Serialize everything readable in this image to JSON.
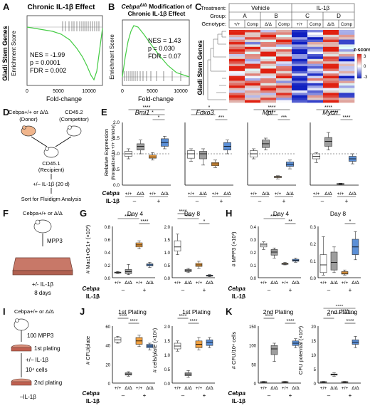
{
  "panels": {
    "A": {
      "label": "A",
      "title": "Chronic IL-1β Effect",
      "ylabel": "Enrichment Score",
      "side_label": "Gladi Stem Genes",
      "xlabel": "Fold-change",
      "stats": [
        "NES = -1.99",
        "p = 0.0001",
        "FDR = 0.002"
      ],
      "xticks": [
        "0",
        "5000",
        "10000"
      ],
      "yticks": [
        "0.0",
        "-0.2",
        "-0.4",
        "-0.6"
      ]
    },
    "B": {
      "label": "B",
      "title_prefix": "Cebpa",
      "title_sup": "Δ/Δ",
      "title_suffix": " Modification of",
      "title_line2": "Chronic IL-1β Effect",
      "ylabel": "Enrichment Score",
      "xlabel": "Fold-change",
      "stats": [
        "NES = 1.43",
        "p = 0.030",
        "FDR = 0.07"
      ],
      "xticks": [
        "0",
        "5000",
        "10000"
      ],
      "yticks": [
        "0.6",
        "0.4",
        "0.2",
        "0.0"
      ]
    },
    "C": {
      "label": "C",
      "row_treatment": "Treatment:",
      "row_group": "Group:",
      "row_genotype": "Genotype:",
      "vehicle": "Vehicle",
      "il1b": "IL-1β",
      "groups": [
        "A",
        "B",
        "C",
        "D"
      ],
      "genotypes": [
        "+/+",
        "Comp",
        "Δ/Δ",
        "Comp",
        "+/+",
        "Comp",
        "Δ/Δ",
        "Comp"
      ],
      "side_label": "Gladi Stem Genes",
      "legend_title": "z-score",
      "legend_ticks": [
        "3",
        "0",
        "-3"
      ]
    },
    "D": {
      "label": "D",
      "donor_line1": "Cebpa+/+ or Δ/Δ",
      "donor": "(Donor)",
      "competitor_line1": "CD45.2",
      "competitor": "(Competitor)",
      "recipient_line1": "CD45.1",
      "recipient": "(Recipient)",
      "treatment": "+/– IL-1β (20 d)",
      "sort": "Sort for Fluidigm Analysis"
    },
    "E": {
      "label": "E",
      "ylabel_line1": "Relative Expression",
      "ylabel_line2": "(Normalized to +/+ Vehicle)",
      "genes": [
        "Bmi1",
        "Foxo3",
        "Mpl",
        "Mycn"
      ],
      "yticks": [
        "2.0",
        "1.5",
        "1.0",
        "0.5",
        "0.0"
      ],
      "x_row_cebpa": "Cebpa",
      "x_row_il1b": "IL-1β",
      "geno_labels": "+/+Δ/Δ+/+Δ/Δ",
      "minus": "–",
      "plus": "+"
    },
    "F": {
      "label": "F",
      "mouse_label": "Cebpa+/+ or Δ/Δ",
      "cells": "MPP3",
      "treatment": "+/- IL-1β",
      "days": "8 days"
    },
    "G": {
      "label": "G",
      "ylabel": "# Mac1+Gr1+ (×10³)",
      "subtitles": [
        "Day 4",
        "Day 8"
      ],
      "yticks_left": [
        "0.8",
        "0.6",
        "0.4",
        "0.2",
        "0.0"
      ],
      "yticks_right": [
        "2.0",
        "1.5",
        "1.0",
        "0.5",
        "0.0"
      ]
    },
    "H": {
      "label": "H",
      "ylabel": "# MPP3 (×10³)",
      "subtitles": [
        "Day 4",
        "Day 8"
      ],
      "yticks_left": [
        "0.4",
        "0.3",
        "0.2",
        "0.1",
        "0.0"
      ],
      "yticks_right": [
        "0.3",
        "0.2",
        "0.1",
        "0.0"
      ]
    },
    "I": {
      "label": "I",
      "mouse_label": "Cebpa+/+ or Δ/Δ",
      "step1": "100 MPP3",
      "step2": "1st plating",
      "step3": "+/– IL-1β",
      "step4": "10⁴ cells",
      "step5": "2nd plating",
      "step6": "–IL-1β"
    },
    "J": {
      "label": "J",
      "subtitles": [
        "1st Plating",
        "1st Plating"
      ],
      "ylabels": [
        "# CFU/plate",
        "# cells/plate (×10⁶)"
      ],
      "yticks_left": [
        "60",
        "40",
        "20",
        "0"
      ],
      "yticks_right": [
        "2.0",
        "1.5",
        "1.0",
        "0.5",
        "0.0"
      ]
    },
    "K": {
      "label": "K",
      "subtitles": [
        "2nd Plating",
        "2nd Plating"
      ],
      "ylabels": [
        "# CFU/10⁴ cells",
        "CFU potential (×10³)"
      ],
      "yticks_left": [
        "150",
        "100",
        "50",
        "0"
      ],
      "yticks_right": [
        "20",
        "15",
        "10",
        "5",
        "0"
      ]
    }
  },
  "sig": {
    "s4": "****",
    "s3": "***",
    "s2": "**",
    "s1": "*"
  },
  "colors": {
    "white_box": "#ffffff",
    "gray_box": "#9e9e9e",
    "orange_box": "#f0a040",
    "blue_box": "#5b8fd6",
    "gsea_line": "#44cc44",
    "heat_red": "#e03020",
    "heat_blue": "#2030c0"
  }
}
